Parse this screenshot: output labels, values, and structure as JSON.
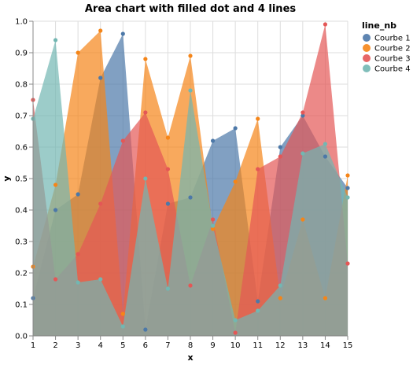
{
  "chart_data": {
    "type": "area",
    "title": "Area chart with filled dot and 4 lines",
    "xlabel": "x",
    "ylabel": "y",
    "x": [
      1,
      2,
      3,
      4,
      5,
      6,
      7,
      8,
      9,
      10,
      11,
      12,
      13,
      14,
      15
    ],
    "xlim": [
      1,
      15
    ],
    "ylim": [
      0,
      1
    ],
    "yticks": [
      "0.0",
      "0.1",
      "0.2",
      "0.3",
      "0.4",
      "0.5",
      "0.6",
      "0.7",
      "0.8",
      "0.9",
      "1.0"
    ],
    "xticks": [
      "1",
      "2",
      "3",
      "4",
      "5",
      "6",
      "7",
      "8",
      "9",
      "10",
      "11",
      "12",
      "13",
      "14",
      "15"
    ],
    "grid": true,
    "legend_title": "line_nb",
    "legend_position": "top-right",
    "series": [
      {
        "name": "Courbe 1",
        "color": "#4c78a8",
        "values": [
          0.12,
          0.4,
          0.45,
          0.82,
          0.96,
          0.02,
          0.42,
          0.44,
          0.62,
          0.66,
          0.11,
          0.6,
          0.7,
          0.57,
          0.47
        ]
      },
      {
        "name": "Courbe 2",
        "color": "#f58518",
        "values": [
          0.22,
          0.48,
          0.9,
          0.97,
          0.07,
          0.88,
          0.63,
          0.89,
          0.34,
          0.49,
          0.69,
          0.12,
          0.37,
          0.12,
          0.51
        ]
      },
      {
        "name": "Courbe 3",
        "color": "#e45756",
        "values": [
          0.75,
          0.18,
          0.26,
          0.42,
          0.62,
          0.71,
          0.53,
          0.16,
          0.37,
          0.01,
          0.53,
          0.57,
          0.71,
          0.99,
          0.23
        ]
      },
      {
        "name": "Courbe 4",
        "color": "#72b7b2",
        "values": [
          0.69,
          0.94,
          0.17,
          0.18,
          0.03,
          0.5,
          0.15,
          0.78,
          0.35,
          0.05,
          0.08,
          0.16,
          0.58,
          0.61,
          0.44
        ]
      }
    ]
  }
}
